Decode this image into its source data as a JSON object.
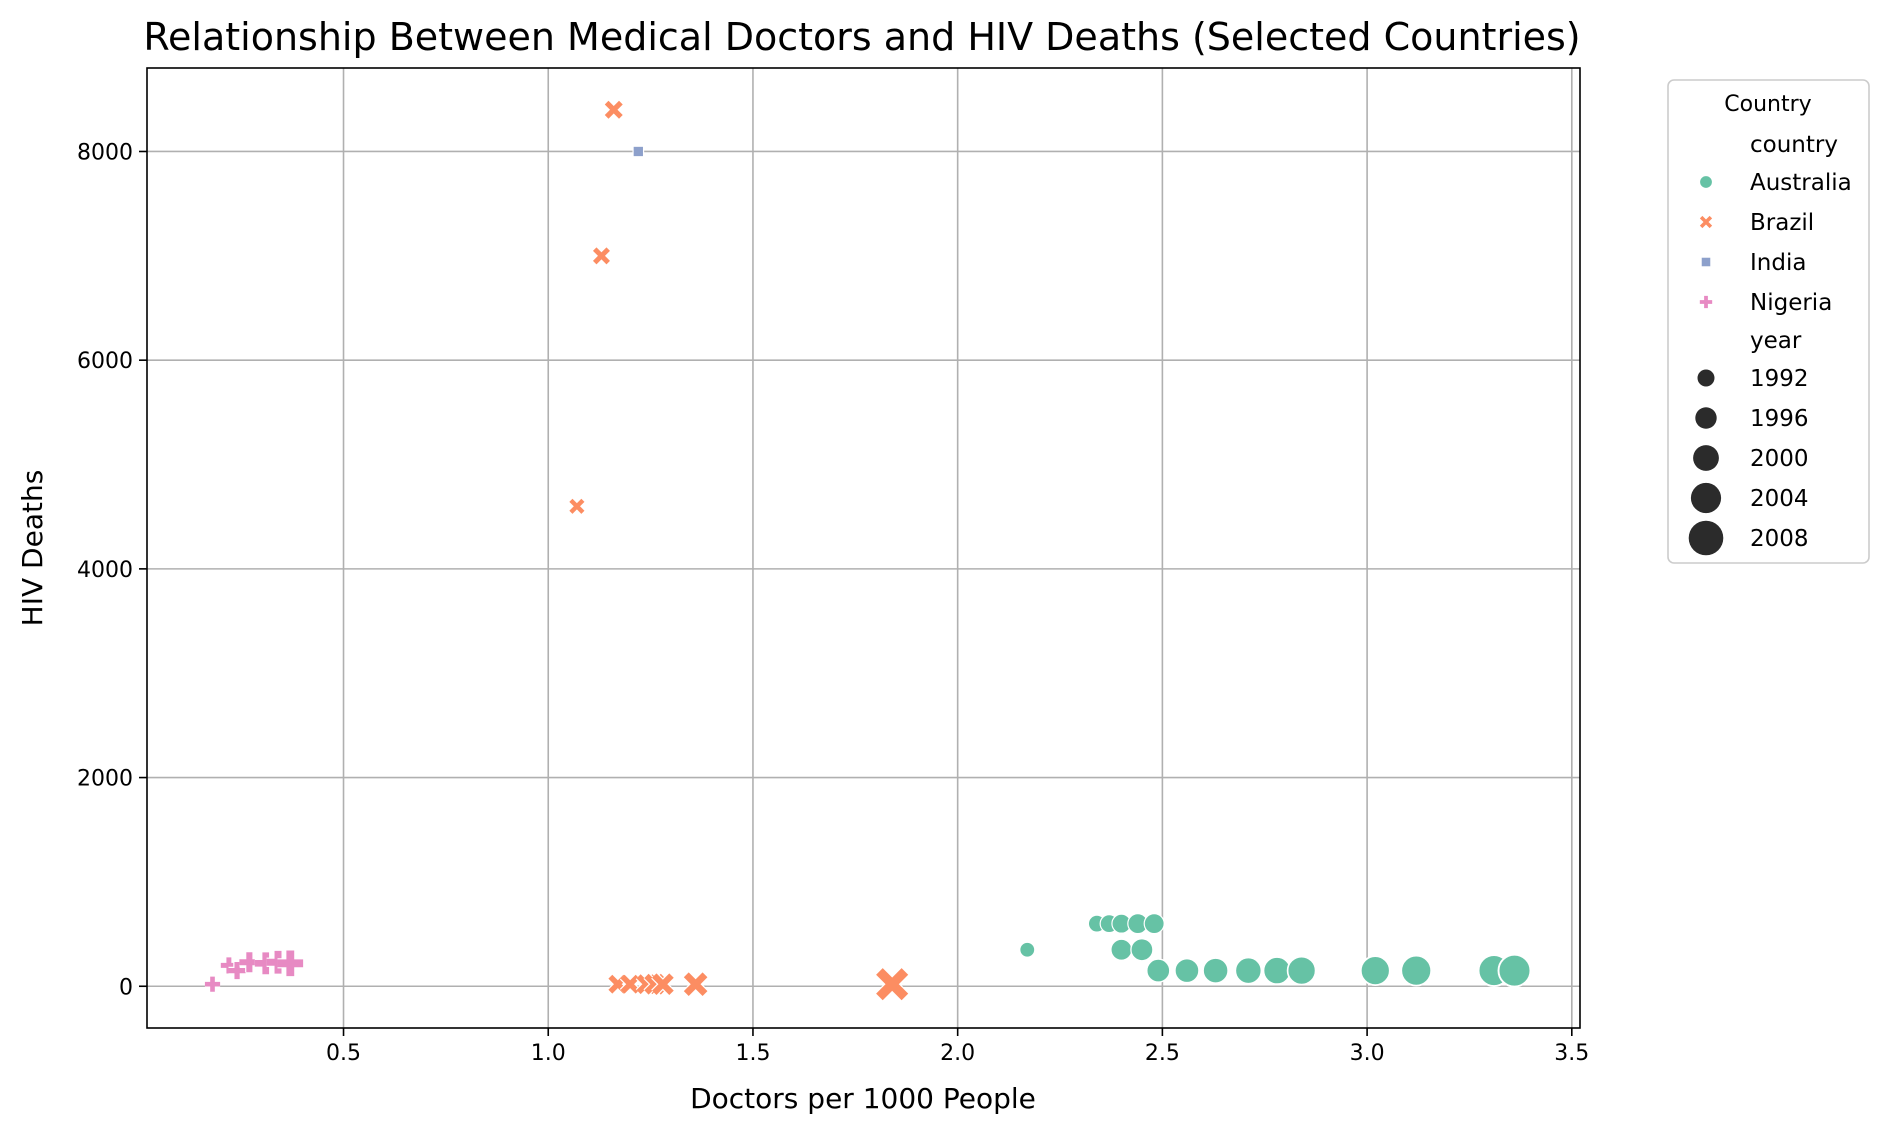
{
  "chart_data": {
    "type": "scatter",
    "title": "Relationship Between Medical Doctors and HIV Deaths (Selected Countries)",
    "xlabel": "Doctors per 1000 People",
    "ylabel": "HIV Deaths",
    "xlim": [
      0.02,
      3.52
    ],
    "ylim": [
      -400,
      8800
    ],
    "xticks": [
      0.5,
      1.0,
      1.5,
      2.0,
      2.5,
      3.0,
      3.5
    ],
    "xtick_labels": [
      "0.5",
      "1.0",
      "1.5",
      "2.0",
      "2.5",
      "3.0",
      "3.5"
    ],
    "yticks": [
      0,
      2000,
      4000,
      6000,
      8000
    ],
    "ytick_labels": [
      "0",
      "2000",
      "4000",
      "6000",
      "8000"
    ],
    "grid": true,
    "legend": {
      "title": "Country",
      "placement": "outside-upper-right",
      "hue_title": "country",
      "size_title": "year",
      "country_entries": [
        {
          "name": "Australia",
          "color": "#66c2a5",
          "marker": "circle"
        },
        {
          "name": "Brazil",
          "color": "#fc8d62",
          "marker": "x"
        },
        {
          "name": "India",
          "color": "#8da0cb",
          "marker": "square"
        },
        {
          "name": "Nigeria",
          "color": "#e78ac3",
          "marker": "plus"
        }
      ],
      "year_entries": [
        "1992",
        "1996",
        "2000",
        "2004",
        "2008"
      ]
    },
    "size_range_years": [
      1990,
      2010
    ],
    "series": [
      {
        "name": "Australia",
        "color": "#66c2a5",
        "marker": "circle",
        "points": [
          {
            "x": 2.17,
            "y": 350,
            "year": 1991
          },
          {
            "x": 2.34,
            "y": 600,
            "year": 1993
          },
          {
            "x": 2.37,
            "y": 600,
            "year": 1994
          },
          {
            "x": 2.4,
            "y": 600,
            "year": 1995
          },
          {
            "x": 2.44,
            "y": 600,
            "year": 1996
          },
          {
            "x": 2.48,
            "y": 600,
            "year": 1996
          },
          {
            "x": 2.4,
            "y": 350,
            "year": 1997
          },
          {
            "x": 2.45,
            "y": 350,
            "year": 1998
          },
          {
            "x": 2.49,
            "y": 150,
            "year": 1999
          },
          {
            "x": 2.56,
            "y": 150,
            "year": 2000
          },
          {
            "x": 2.63,
            "y": 150,
            "year": 2001
          },
          {
            "x": 2.71,
            "y": 150,
            "year": 2002
          },
          {
            "x": 2.78,
            "y": 150,
            "year": 2003
          },
          {
            "x": 2.84,
            "y": 150,
            "year": 2004
          },
          {
            "x": 3.02,
            "y": 150,
            "year": 2005
          },
          {
            "x": 3.12,
            "y": 150,
            "year": 2006
          },
          {
            "x": 3.31,
            "y": 150,
            "year": 2007
          },
          {
            "x": 3.36,
            "y": 150,
            "year": 2008
          }
        ]
      },
      {
        "name": "Brazil",
        "color": "#fc8d62",
        "marker": "x",
        "points": [
          {
            "x": 1.07,
            "y": 4600,
            "year": 1992
          },
          {
            "x": 1.13,
            "y": 7000,
            "year": 1994
          },
          {
            "x": 1.16,
            "y": 8400,
            "year": 1995
          },
          {
            "x": 1.17,
            "y": 20,
            "year": 1996
          },
          {
            "x": 1.2,
            "y": 20,
            "year": 1996
          },
          {
            "x": 1.24,
            "y": 20,
            "year": 1997
          },
          {
            "x": 1.26,
            "y": 20,
            "year": 1998
          },
          {
            "x": 1.28,
            "y": 20,
            "year": 1999
          },
          {
            "x": 1.36,
            "y": 20,
            "year": 2001
          },
          {
            "x": 1.84,
            "y": 20,
            "year": 2010
          }
        ]
      },
      {
        "name": "India",
        "color": "#8da0cb",
        "marker": "square",
        "points": [
          {
            "x": 1.22,
            "y": 8000,
            "year": 1990
          }
        ]
      },
      {
        "name": "Nigeria",
        "color": "#e78ac3",
        "marker": "plus",
        "points": [
          {
            "x": 0.18,
            "y": 20,
            "year": 1992
          },
          {
            "x": 0.22,
            "y": 200,
            "year": 1993
          },
          {
            "x": 0.24,
            "y": 150,
            "year": 1994
          },
          {
            "x": 0.27,
            "y": 230,
            "year": 1997
          },
          {
            "x": 0.31,
            "y": 220,
            "year": 1999
          },
          {
            "x": 0.34,
            "y": 230,
            "year": 2000
          },
          {
            "x": 0.37,
            "y": 220,
            "year": 2003
          }
        ]
      }
    ]
  }
}
